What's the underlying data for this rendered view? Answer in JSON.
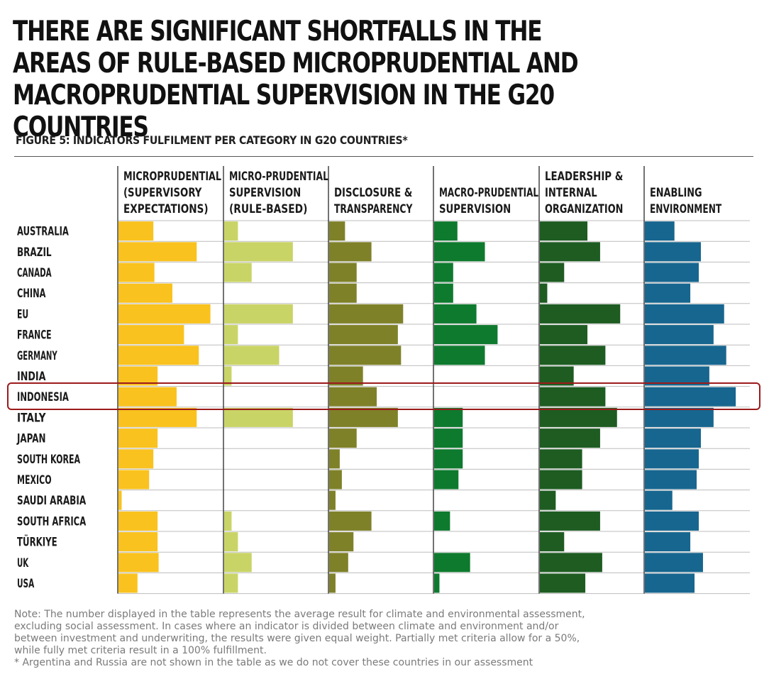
{
  "headline": "THERE ARE SIGNIFICANT SHORTFALLS IN THE AREAS OF RULE-BASED MICROPRUDENTIAL AND MACROPRUDENTIAL SUPERVISION IN THE G20 COUNTRIES",
  "chart_data": {
    "type": "bar",
    "title": "FIGURE 5: INDICATORS FULFILMENT PER CATEGORY IN G20 COUNTRIES*",
    "categories": [
      "AUSTRALIA",
      "BRAZIL",
      "CANADA",
      "CHINA",
      "EU",
      "FRANCE",
      "GERMANY",
      "INDIA",
      "INDONESIA",
      "ITALY",
      "JAPAN",
      "SOUTH KOREA",
      "MEXICO",
      "SAUDI ARABIA",
      "SOUTH AFRICA",
      "TÜRKIYE",
      "UK",
      "USA"
    ],
    "unit": "percent fulfillment",
    "xlim": [
      0,
      100
    ],
    "highlighted_category": "INDONESIA",
    "series": [
      {
        "name": [
          "MICROPRUDENTIAL",
          "(SUPERVISORY",
          "EXPECTATIONS)"
        ],
        "color": "#f9c21e",
        "values": [
          33,
          74,
          34,
          51,
          87,
          62,
          76,
          37,
          55,
          74,
          37,
          33,
          29,
          3,
          37,
          37,
          38,
          18
        ]
      },
      {
        "name": [
          "MICRO-PRUDENTIAL",
          "SUPERVISION",
          "(RULE-BASED)"
        ],
        "color": "#c9d466",
        "values": [
          13,
          65,
          26,
          0,
          65,
          13,
          52,
          7,
          0,
          65,
          0,
          0,
          0,
          0,
          7,
          13,
          26,
          13
        ]
      },
      {
        "name": [
          "DISCLOSURE &",
          "TRANSPARENCY"
        ],
        "color": "#7f8129",
        "values": [
          15,
          40,
          26,
          26,
          70,
          65,
          68,
          32,
          45,
          65,
          26,
          10,
          12,
          6,
          40,
          23,
          18,
          6
        ]
      },
      {
        "name": [
          "MACRO-PRUDENTIAL",
          "SUPERVISION"
        ],
        "color": "#0e7a2e",
        "values": [
          22,
          48,
          18,
          18,
          40,
          60,
          48,
          0,
          0,
          27,
          27,
          27,
          23,
          0,
          15,
          0,
          34,
          5
        ]
      },
      {
        "name": [
          "LEADERSHIP &",
          "INTERNAL",
          "ORGANIZATION"
        ],
        "color": "#1e5c22",
        "values": [
          45,
          57,
          23,
          7,
          76,
          45,
          62,
          32,
          62,
          73,
          57,
          40,
          40,
          15,
          57,
          23,
          59,
          43
        ]
      },
      {
        "name": [
          "ENABLING",
          "ENVIRONMENT"
        ],
        "color": "#17668f",
        "values": [
          28,
          53,
          51,
          43,
          75,
          65,
          77,
          61,
          86,
          65,
          53,
          51,
          49,
          26,
          51,
          43,
          55,
          47
        ]
      }
    ]
  },
  "note": {
    "lines": [
      "Note: The number displayed in the table represents the average result for climate and environmental assessment,",
      "excluding social assessment. In cases where an indicator is divided between climate and environment and/or",
      "between investment and underwriting, the results were given equal weight. Partially met criteria allow for a 50%,",
      "while fully met criteria result in a 100% fulfillment."
    ],
    "footnote": "* Argentina and Russia are not shown in the table as we do not cover these countries in our assessment"
  },
  "colors": {
    "highlight": "#9c1a1a",
    "grid": "#bdbdbd",
    "divider": "#444444"
  }
}
